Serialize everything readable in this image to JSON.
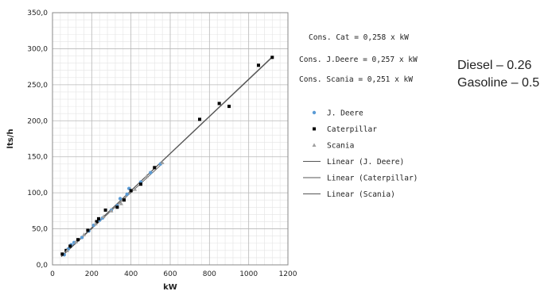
{
  "side_notes": [
    "Diesel – 0.26",
    "Gasoline – 0.5"
  ],
  "chart_data": {
    "type": "scatter",
    "xlabel": "kW",
    "ylabel": "lts/h",
    "xlim": [
      0,
      1200
    ],
    "ylim": [
      0,
      350
    ],
    "x_ticks": [
      "0",
      "200",
      "400",
      "600",
      "800",
      "1000",
      "1200"
    ],
    "y_ticks": [
      "0,0",
      "50,0",
      "100,0",
      "150,0",
      "200,0",
      "250,0",
      "300,0",
      "350,0"
    ],
    "grid": true,
    "legend_position": "right",
    "equations": [
      "Cons. Cat = 0,258 x kW",
      "Cons. J.Deere  = 0,257 x kW",
      "Cons. Scania = 0,251 x kW"
    ],
    "legend": [
      {
        "label": "J. Deere",
        "kind": "marker",
        "marker": "circle",
        "color": "#5b9bd5"
      },
      {
        "label": "Caterpillar",
        "kind": "marker",
        "marker": "square",
        "color": "#000000"
      },
      {
        "label": "Scania",
        "kind": "marker",
        "marker": "triangle",
        "color": "#a0a0a0"
      },
      {
        "label": "Linear (J. Deere)",
        "kind": "line",
        "color": "#555555"
      },
      {
        "label": "Linear (Caterpillar)",
        "kind": "line",
        "color": "#555555"
      },
      {
        "label": "Linear (Scania)",
        "kind": "line",
        "color": "#555555"
      }
    ],
    "series": [
      {
        "name": "J. Deere",
        "marker": "circle",
        "color": "#5b9bd5",
        "points": [
          [
            60,
            14
          ],
          [
            80,
            22
          ],
          [
            95,
            28
          ],
          [
            110,
            31
          ],
          [
            150,
            38
          ],
          [
            185,
            47
          ],
          [
            210,
            55
          ],
          [
            240,
            62
          ],
          [
            255,
            65
          ],
          [
            300,
            76
          ],
          [
            330,
            82
          ],
          [
            345,
            92
          ],
          [
            380,
            98
          ],
          [
            390,
            106
          ],
          [
            450,
            115
          ],
          [
            500,
            128
          ],
          [
            550,
            140
          ]
        ]
      },
      {
        "name": "Caterpillar",
        "marker": "square",
        "color": "#000000",
        "points": [
          [
            50,
            15
          ],
          [
            70,
            20
          ],
          [
            90,
            26
          ],
          [
            130,
            35
          ],
          [
            180,
            48
          ],
          [
            225,
            60
          ],
          [
            235,
            64
          ],
          [
            270,
            76
          ],
          [
            330,
            80
          ],
          [
            365,
            90
          ],
          [
            400,
            103
          ],
          [
            450,
            112
          ],
          [
            520,
            135
          ],
          [
            750,
            202
          ],
          [
            850,
            224
          ],
          [
            900,
            220
          ],
          [
            1050,
            277
          ],
          [
            1120,
            288
          ]
        ]
      },
      {
        "name": "Scania",
        "marker": "triangle",
        "color": "#a0a0a0",
        "points": [
          [
            75,
            20
          ],
          [
            120,
            32
          ],
          [
            160,
            42
          ],
          [
            220,
            57
          ],
          [
            260,
            67
          ],
          [
            300,
            75
          ],
          [
            350,
            85
          ],
          [
            420,
            105
          ],
          [
            480,
            123
          ],
          [
            560,
            142
          ]
        ]
      }
    ],
    "fit_lines": [
      {
        "name": "Linear (J. Deere)",
        "slope": 0.257,
        "x": [
          45,
          1120
        ]
      },
      {
        "name": "Linear (Caterpillar)",
        "slope": 0.258,
        "x": [
          45,
          1120
        ]
      },
      {
        "name": "Linear (Scania)",
        "slope": 0.251,
        "x": [
          45,
          560
        ]
      }
    ]
  }
}
